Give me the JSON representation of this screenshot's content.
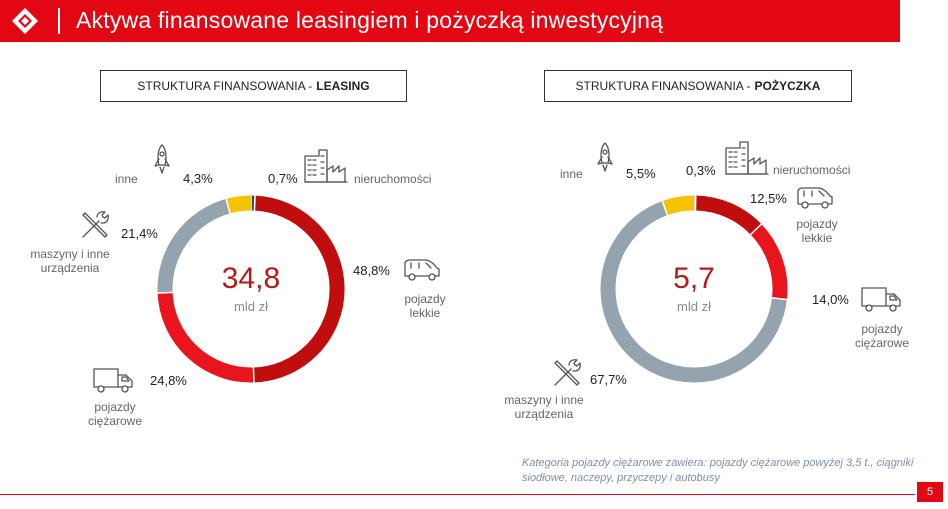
{
  "header": {
    "title": "Aktywa finansowane leasingiem i pożyczką inwestycyjną"
  },
  "colors": {
    "brand": "#e30613",
    "dark_red": "#c00d0d",
    "red": "#e8151c",
    "gray": "#94a3ad",
    "yellow": "#f5c200",
    "blue": "#2e4a80"
  },
  "chart_data": [
    {
      "type": "pie",
      "title_prefix": "STRUKTURA FINANSOWANIA - ",
      "title_bold": "LEASING",
      "center_value": "34,8",
      "center_unit": "mld zł",
      "slices": [
        {
          "label": "nieruchomości",
          "value": 0.7,
          "value_label": "0,7%",
          "color": "#2e4a80"
        },
        {
          "label": "pojazdy lekkie",
          "value": 48.8,
          "value_label": "48,8%",
          "color": "#c00d0d"
        },
        {
          "label": "pojazdy ciężarowe",
          "value": 24.8,
          "value_label": "24,8%",
          "color": "#e8151c"
        },
        {
          "label": "maszyny i inne urządzenia",
          "value": 21.4,
          "value_label": "21,4%",
          "color": "#94a3ad"
        },
        {
          "label": "inne",
          "value": 4.3,
          "value_label": "4,3%",
          "color": "#f5c200"
        }
      ]
    },
    {
      "type": "pie",
      "title_prefix": "STRUKTURA FINANSOWANIA - ",
      "title_bold": "POŻYCZKA",
      "center_value": "5,7",
      "center_unit": "mld zł",
      "slices": [
        {
          "label": "nieruchomości",
          "value": 0.3,
          "value_label": "0,3%",
          "color": "#2e4a80"
        },
        {
          "label": "pojazdy lekkie",
          "value": 12.5,
          "value_label": "12,5%",
          "color": "#c00d0d"
        },
        {
          "label": "pojazdy ciężarowe",
          "value": 14.0,
          "value_label": "14,0%",
          "color": "#e8151c"
        },
        {
          "label": "maszyny i inne urządzenia",
          "value": 67.7,
          "value_label": "67,7%",
          "color": "#94a3ad"
        },
        {
          "label": "inne",
          "value": 5.5,
          "value_label": "5,5%",
          "color": "#f5c200"
        }
      ]
    }
  ],
  "footnote": "Kategoria pojazdy ciężarowe zawiera: pojazdy ciężarowe powyżej 3,5 t., ciągniki siodłowe, naczepy, przyczepy i autobusy",
  "page_number": "5"
}
